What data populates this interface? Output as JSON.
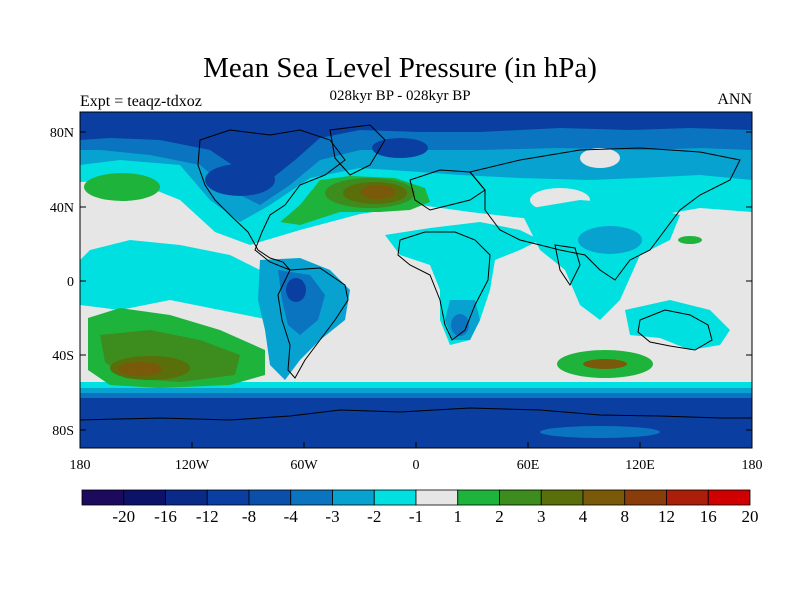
{
  "title": "Mean Sea Level Pressure (in hPa)",
  "subtitle": "028kyr BP - 028kyr BP",
  "left_label": "Expt = teaqz-tdxoz",
  "right_label": "ANN",
  "lat_ticks": [
    "80N",
    "40N",
    "0",
    "40S",
    "80S"
  ],
  "lon_ticks": [
    "180",
    "120W",
    "60W",
    "0",
    "60E",
    "120E",
    "180"
  ],
  "colorbar": {
    "colors": [
      "#1c0b5c",
      "#0c1268",
      "#0a2a8a",
      "#0a3ea0",
      "#0a50aa",
      "#0a74c0",
      "#07a2d0",
      "#00e0e0",
      "#e6e6e6",
      "#1eb43c",
      "#3c8c1e",
      "#5a6e0a",
      "#7a5a0a",
      "#8a3c0a",
      "#aa1e0a",
      "#d00000"
    ],
    "labels": [
      "-20",
      "-16",
      "-12",
      "-8",
      "-4",
      "-3",
      "-2",
      "-1",
      "1",
      "2",
      "3",
      "4",
      "8",
      "12",
      "16",
      "20"
    ]
  },
  "map_colors": {
    "ocean_bg": "#e6e6e6",
    "deep_blue": "#0a3ea0",
    "mid_blue": "#0a74c0",
    "light_blue": "#07a2d0",
    "cyan": "#00e0e0",
    "green": "#1eb43c",
    "dark_green": "#3c8c1e",
    "olive": "#5a6e0a",
    "brown": "#7a5a0a",
    "coast": "#000000"
  }
}
